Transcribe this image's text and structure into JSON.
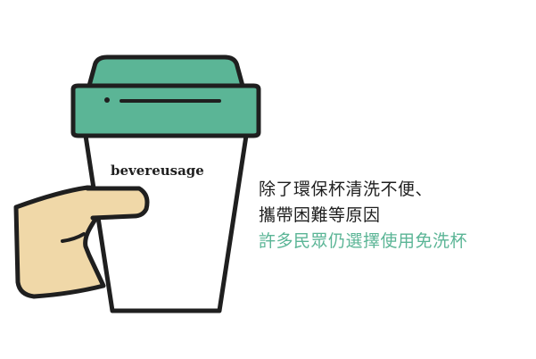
{
  "cup": {
    "brand_label": "bevereusage"
  },
  "caption": {
    "line1": "除了環保杯清洗不便、",
    "line2": "攜帶困難等原因",
    "line3": "許多民眾仍選擇使用免洗杯"
  },
  "colors": {
    "lid": "#5bb596",
    "hand": "#f0d8a8",
    "outline": "#1f1f1f",
    "accent_text": "#5bb596"
  }
}
